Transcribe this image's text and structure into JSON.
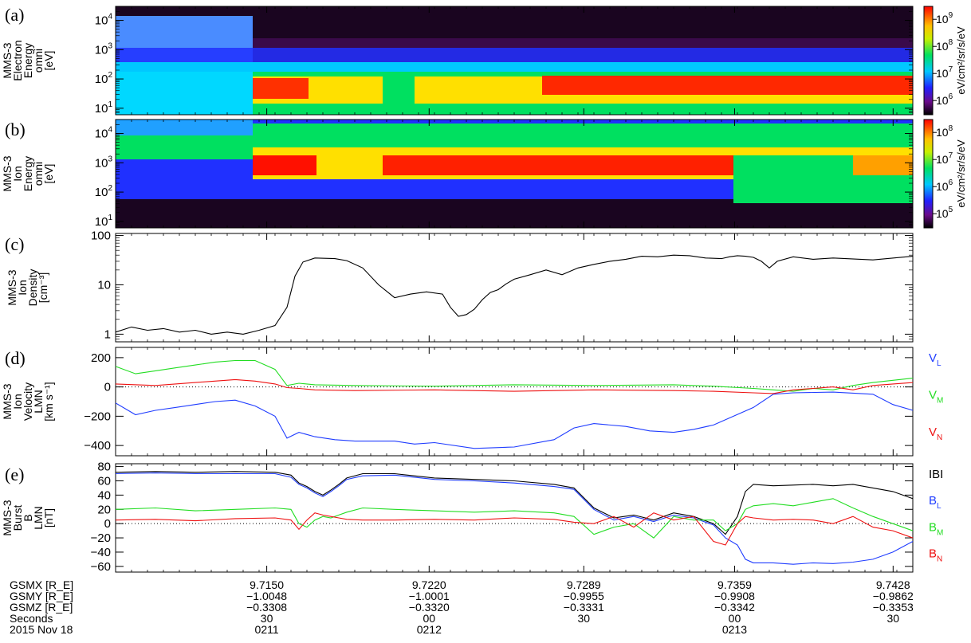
{
  "chart_data": [
    {
      "panel": "(a)",
      "type": "heatmap",
      "ylabel": [
        "MMS-3",
        "Electron",
        "Energy",
        "omni",
        "[eV]"
      ],
      "yscale": "log",
      "ylim": [
        6,
        30000
      ],
      "yticks": [
        {
          "v": 10,
          "mant": "10",
          "exp": "1"
        },
        {
          "v": 100,
          "mant": "10",
          "exp": "2"
        },
        {
          "v": 1000,
          "mant": "10",
          "exp": "3"
        },
        {
          "v": 10000,
          "mant": "10",
          "exp": "4"
        }
      ],
      "colorbar": {
        "label": "eV/cm²/sr/s/eV",
        "scale": "log",
        "range": [
          300000,
          3000000000
        ],
        "ticks": [
          {
            "v": 1000000,
            "mant": "10",
            "exp": "6"
          },
          {
            "v": 10000000,
            "mant": "10",
            "exp": "7"
          },
          {
            "v": 100000000,
            "mant": "10",
            "exp": "8"
          },
          {
            "v": 1000000000,
            "mant": "10",
            "exp": "9"
          }
        ]
      }
    },
    {
      "panel": "(b)",
      "type": "heatmap",
      "ylabel": [
        "MMS-3",
        "Ion",
        "Energy",
        "omni",
        "[eV]"
      ],
      "yscale": "log",
      "ylim": [
        6,
        30000
      ],
      "yticks": [
        {
          "v": 10,
          "mant": "10",
          "exp": "1"
        },
        {
          "v": 100,
          "mant": "10",
          "exp": "2"
        },
        {
          "v": 1000,
          "mant": "10",
          "exp": "3"
        },
        {
          "v": 10000,
          "mant": "10",
          "exp": "4"
        }
      ],
      "colorbar": {
        "label": "eV/cm²/sr/s/eV",
        "scale": "log",
        "range": [
          30000,
          300000000
        ],
        "ticks": [
          {
            "v": 100000,
            "mant": "10",
            "exp": "5"
          },
          {
            "v": 1000000,
            "mant": "10",
            "exp": "6"
          },
          {
            "v": 10000000,
            "mant": "10",
            "exp": "7"
          },
          {
            "v": 100000000,
            "mant": "10",
            "exp": "8"
          }
        ]
      }
    },
    {
      "panel": "(c)",
      "type": "line",
      "ylabel": [
        "MMS-3",
        "Ion",
        "Density",
        "[cm⁻³]"
      ],
      "yscale": "log",
      "ylim": [
        0.7,
        110
      ],
      "yticks": [
        {
          "v": 1,
          "label": "1"
        },
        {
          "v": 10,
          "label": "10"
        },
        {
          "v": 100,
          "label": "100"
        }
      ],
      "series": [
        {
          "color": "#000000",
          "x": [
            0,
            4,
            8,
            12,
            16,
            20,
            24,
            28,
            32,
            36,
            40,
            43,
            45,
            47,
            50,
            55,
            58,
            62,
            66,
            70,
            74,
            78,
            82,
            84,
            86,
            88,
            90,
            92,
            94,
            96,
            98,
            100,
            104,
            108,
            112,
            116,
            120,
            124,
            128,
            132,
            136,
            140,
            144,
            148,
            152,
            154,
            156,
            158,
            160,
            162,
            164,
            166,
            170,
            175,
            180,
            190,
            200
          ],
          "y": [
            1.1,
            1.4,
            1.2,
            1.3,
            1.1,
            1.2,
            1.0,
            1.1,
            1.0,
            1.2,
            1.5,
            3.5,
            15,
            29,
            35,
            34,
            31,
            22,
            10,
            5.5,
            6.5,
            7.2,
            6.5,
            3.5,
            2.3,
            2.5,
            3.2,
            5,
            7,
            8,
            10.5,
            13,
            16,
            20,
            16,
            22,
            26,
            30,
            33,
            38,
            37,
            40,
            39,
            35,
            34,
            37,
            39,
            38,
            36,
            30,
            22,
            30,
            37,
            33,
            35,
            32,
            38
          ]
        }
      ]
    },
    {
      "panel": "(d)",
      "type": "line",
      "ylabel": [
        "MMS-3",
        "Ion",
        "Velocity",
        "LMN",
        "[km s⁻¹]"
      ],
      "ylim": [
        -470,
        270
      ],
      "yticks": [
        {
          "v": -400,
          "label": "−400"
        },
        {
          "v": -200,
          "label": "−200"
        },
        {
          "v": 0,
          "label": "0"
        },
        {
          "v": 200,
          "label": "200"
        }
      ],
      "zero_line": true,
      "series": [
        {
          "name": "V_L",
          "sub": "L",
          "color": "#1f3cff",
          "x": [
            0,
            5,
            10,
            15,
            20,
            25,
            30,
            35,
            40,
            43,
            46,
            50,
            55,
            60,
            70,
            75,
            80,
            90,
            100,
            110,
            115,
            120,
            128,
            134,
            140,
            145,
            150,
            155,
            160,
            165,
            170,
            180,
            190,
            195,
            200
          ],
          "y": [
            -110,
            -190,
            -160,
            -140,
            -120,
            -100,
            -90,
            -130,
            -200,
            -350,
            -310,
            -340,
            -360,
            -370,
            -370,
            -390,
            -380,
            -420,
            -410,
            -360,
            -280,
            -250,
            -270,
            -300,
            -310,
            -290,
            -260,
            -200,
            -140,
            -50,
            -40,
            -35,
            -50,
            -120,
            -160
          ]
        },
        {
          "name": "V_M",
          "sub": "M",
          "color": "#22dd22",
          "x": [
            0,
            5,
            10,
            15,
            20,
            25,
            30,
            35,
            40,
            43,
            46,
            50,
            60,
            80,
            100,
            120,
            140,
            150,
            160,
            165,
            170,
            175,
            180,
            185,
            190,
            200
          ],
          "y": [
            140,
            90,
            110,
            130,
            150,
            170,
            180,
            180,
            120,
            10,
            25,
            15,
            10,
            5,
            15,
            10,
            15,
            5,
            -10,
            -20,
            -30,
            -10,
            -20,
            10,
            30,
            60
          ]
        },
        {
          "name": "V_N",
          "sub": "N",
          "color": "#ee1111",
          "x": [
            0,
            10,
            20,
            30,
            35,
            40,
            43,
            46,
            50,
            60,
            80,
            100,
            120,
            140,
            150,
            160,
            165,
            170,
            175,
            180,
            185,
            190,
            200
          ],
          "y": [
            20,
            10,
            30,
            50,
            40,
            20,
            -5,
            -10,
            -20,
            -25,
            -20,
            -30,
            -20,
            -25,
            -30,
            -40,
            -45,
            -20,
            -10,
            0,
            -20,
            10,
            30
          ]
        }
      ]
    },
    {
      "panel": "(e)",
      "type": "line",
      "ylabel": [
        "MMS-3",
        "Burst",
        "B",
        "LMN",
        "[nT]"
      ],
      "ylim": [
        -68,
        84
      ],
      "yticks": [
        {
          "v": -60,
          "label": "−60"
        },
        {
          "v": -40,
          "label": "−40"
        },
        {
          "v": -20,
          "label": "−20"
        },
        {
          "v": 0,
          "label": "0"
        },
        {
          "v": 20,
          "label": "20"
        },
        {
          "v": 40,
          "label": "40"
        },
        {
          "v": 60,
          "label": "60"
        },
        {
          "v": 80,
          "label": "80"
        }
      ],
      "zero_line": true,
      "series": [
        {
          "name": "|B|",
          "label": "IBI",
          "color": "#000000",
          "x": [
            0,
            10,
            20,
            30,
            40,
            44,
            46,
            48,
            50,
            52,
            54,
            56,
            58,
            62,
            70,
            80,
            90,
            100,
            110,
            115,
            120,
            125,
            130,
            135,
            140,
            145,
            150,
            153,
            156,
            158,
            160,
            165,
            170,
            175,
            180,
            185,
            190,
            195,
            200
          ],
          "y": [
            72,
            73,
            72,
            73,
            72,
            68,
            57,
            52,
            45,
            40,
            47,
            55,
            64,
            70,
            70,
            64,
            62,
            60,
            55,
            50,
            22,
            8,
            12,
            5,
            15,
            10,
            0,
            -15,
            10,
            45,
            55,
            53,
            54,
            55,
            53,
            55,
            50,
            45,
            35
          ]
        },
        {
          "name": "B_L",
          "sub": "L",
          "color": "#1f3cff",
          "x": [
            0,
            10,
            20,
            30,
            40,
            44,
            46,
            48,
            50,
            52,
            54,
            56,
            58,
            62,
            70,
            80,
            90,
            100,
            110,
            115,
            120,
            125,
            130,
            135,
            140,
            145,
            150,
            153,
            156,
            158,
            160,
            165,
            170,
            175,
            180,
            185,
            190,
            195,
            200
          ],
          "y": [
            70,
            71,
            70,
            70,
            70,
            65,
            55,
            50,
            43,
            38,
            45,
            53,
            62,
            67,
            68,
            62,
            60,
            57,
            52,
            48,
            20,
            5,
            10,
            3,
            12,
            8,
            -2,
            -20,
            -30,
            -50,
            -55,
            -55,
            -57,
            -55,
            -56,
            -54,
            -50,
            -40,
            -25
          ]
        },
        {
          "name": "B_M",
          "sub": "M",
          "color": "#22dd22",
          "x": [
            0,
            10,
            20,
            30,
            40,
            44,
            46,
            48,
            50,
            52,
            54,
            56,
            58,
            62,
            70,
            80,
            90,
            100,
            110,
            115,
            120,
            125,
            130,
            135,
            140,
            145,
            150,
            153,
            156,
            158,
            160,
            165,
            170,
            175,
            180,
            185,
            190,
            195,
            200
          ],
          "y": [
            20,
            22,
            18,
            20,
            22,
            20,
            0,
            -5,
            5,
            10,
            8,
            12,
            16,
            22,
            20,
            18,
            16,
            18,
            15,
            10,
            -15,
            -5,
            0,
            -20,
            10,
            5,
            5,
            -10,
            0,
            20,
            25,
            28,
            25,
            30,
            35,
            22,
            10,
            0,
            -10
          ]
        },
        {
          "name": "B_N",
          "sub": "N",
          "color": "#ee1111",
          "x": [
            0,
            10,
            20,
            30,
            40,
            44,
            46,
            48,
            50,
            52,
            54,
            56,
            58,
            62,
            70,
            80,
            90,
            100,
            110,
            115,
            120,
            125,
            130,
            135,
            140,
            145,
            150,
            153,
            156,
            158,
            160,
            165,
            170,
            175,
            180,
            185,
            190,
            195,
            200
          ],
          "y": [
            5,
            6,
            4,
            7,
            8,
            5,
            -8,
            5,
            15,
            12,
            10,
            8,
            6,
            5,
            5,
            6,
            5,
            8,
            6,
            2,
            0,
            10,
            -5,
            15,
            5,
            10,
            -25,
            -30,
            0,
            10,
            8,
            5,
            6,
            5,
            0,
            10,
            -5,
            -10,
            -20
          ]
        }
      ]
    }
  ],
  "footer": {
    "labels": [
      "GSMX [R_E]",
      "GSMY [R_E]",
      "GSMZ [R_E]",
      "Seconds",
      "2015 Nov 18"
    ],
    "columns": [
      {
        "values": [
          "9.7150",
          "−1.0048",
          "−0.3308",
          "30",
          "0211"
        ]
      },
      {
        "values": [
          "9.7220",
          "−1.0001",
          "−0.3320",
          "00",
          "0212"
        ]
      },
      {
        "values": [
          "9.7289",
          "−0.9955",
          "−0.3331",
          "30",
          ""
        ]
      },
      {
        "values": [
          "9.7359",
          "−0.9908",
          "−0.3342",
          "00",
          "0213"
        ]
      },
      {
        "values": [
          "9.7428",
          "−0.9862",
          "−0.3353",
          "30",
          ""
        ]
      }
    ]
  }
}
